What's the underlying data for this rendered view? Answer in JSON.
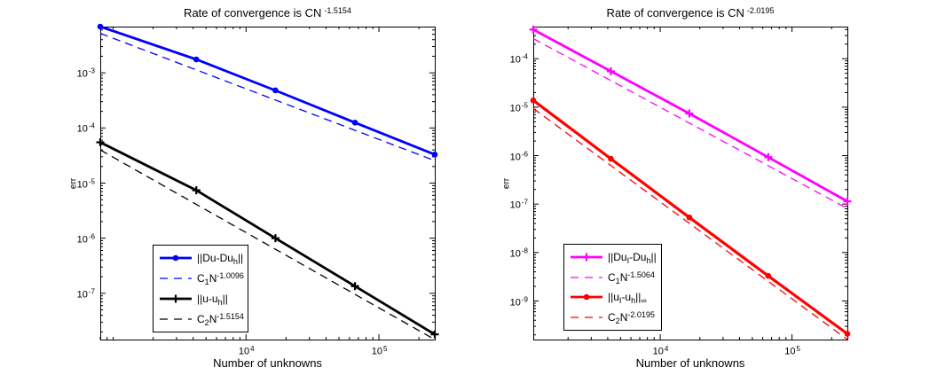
{
  "figure": {
    "background": "#ffffff",
    "axis_color": "#000000"
  },
  "chart_data": [
    {
      "id": "left",
      "type": "line",
      "xscale": "log",
      "yscale": "log",
      "title_base": "Rate of convergence is CN",
      "title_exp": "-1.5154",
      "xlabel": "Number of unknowns",
      "ylabel": "err",
      "xlim": [
        800,
        263169
      ],
      "ylim": [
        1.45e-08,
        0.0069
      ],
      "xtick_exponents": [
        4,
        5
      ],
      "ytick_exponents": [
        -3,
        -4,
        -5,
        -6,
        -7
      ],
      "grid": false,
      "legend_position": "south-west-inside",
      "series": [
        {
          "name": "Du-error",
          "legend_segments": [
            [
              "||Du-Du",
              "n"
            ],
            [
              "h",
              "sub"
            ],
            [
              "||",
              "n"
            ]
          ],
          "color": "#0000ff",
          "style": "solid",
          "marker": "dot",
          "line_width": 2.8,
          "x": [
            800,
            4225,
            16641,
            66049,
            263169
          ],
          "y": [
            0.0069,
            0.00175,
            0.00048,
            0.000125,
            3.3e-05
          ]
        },
        {
          "name": "C1-reference",
          "legend_segments": [
            [
              "C",
              "n"
            ],
            [
              "1",
              "sub"
            ],
            [
              "N",
              "n"
            ],
            [
              "-1.0096",
              "sup"
            ]
          ],
          "color": "#0000ff",
          "style": "dashed",
          "marker": "none",
          "line_width": 1.3,
          "x": [
            800,
            263169
          ],
          "y": [
            0.0052,
            2.55e-05
          ]
        },
        {
          "name": "u-error",
          "legend_segments": [
            [
              "||u-u",
              "n"
            ],
            [
              "h",
              "sub"
            ],
            [
              "||",
              "n"
            ]
          ],
          "color": "#000000",
          "style": "solid",
          "marker": "plus",
          "line_width": 2.8,
          "x": [
            800,
            4225,
            16641,
            66049,
            263169
          ],
          "y": [
            5.5e-05,
            7.4e-06,
            1e-06,
            1.35e-07,
            1.8e-08
          ]
        },
        {
          "name": "C2-reference",
          "legend_segments": [
            [
              "C",
              "n"
            ],
            [
              "2",
              "sub"
            ],
            [
              "N",
              "n"
            ],
            [
              "-1.5154",
              "sup"
            ]
          ],
          "color": "#000000",
          "style": "dashed",
          "marker": "none",
          "line_width": 1.3,
          "x": [
            800,
            263169
          ],
          "y": [
            4e-05,
            1.45e-08
          ]
        }
      ]
    },
    {
      "id": "right",
      "type": "line",
      "xscale": "log",
      "yscale": "log",
      "title_base": "Rate of convergence is CN",
      "title_exp": "-2.0195",
      "xlabel": "Number of unknowns",
      "ylabel": "err",
      "xlim": [
        1089,
        263169
      ],
      "ylim": [
        1.6e-10,
        0.00046
      ],
      "xtick_exponents": [
        4,
        5
      ],
      "ytick_exponents": [
        -4,
        -5,
        -6,
        -7,
        -8,
        -9
      ],
      "grid": false,
      "legend_position": "south-west-inside",
      "series": [
        {
          "name": "DuI-Duh-error",
          "legend_segments": [
            [
              "||Du",
              "n"
            ],
            [
              "I",
              "sub"
            ],
            [
              "-Du",
              "n"
            ],
            [
              "h",
              "sub"
            ],
            [
              "||",
              "n"
            ]
          ],
          "color": "#ff00ff",
          "style": "solid",
          "marker": "plus",
          "line_width": 2.8,
          "x": [
            1089,
            4225,
            16641,
            66049,
            263169
          ],
          "y": [
            0.0004,
            5.5e-05,
            7.4e-06,
            9.3e-07,
            1.14e-07
          ]
        },
        {
          "name": "C1-reference",
          "legend_segments": [
            [
              "C",
              "n"
            ],
            [
              "1",
              "sub"
            ],
            [
              "N",
              "n"
            ],
            [
              "-1.5064",
              "sup"
            ]
          ],
          "color": "#ff00ff",
          "style": "dashed",
          "marker": "none",
          "line_width": 1.3,
          "x": [
            1089,
            263169
          ],
          "y": [
            0.00026,
            8.1e-08
          ]
        },
        {
          "name": "uI-uh-inf-error",
          "legend_segments": [
            [
              "||u",
              "n"
            ],
            [
              "I",
              "sub"
            ],
            [
              "-u",
              "n"
            ],
            [
              "h",
              "sub"
            ],
            [
              "||",
              "n"
            ],
            [
              "∞",
              "sub"
            ]
          ],
          "color": "#ff0000",
          "style": "solid",
          "marker": "dot",
          "line_width": 3.2,
          "x": [
            1089,
            4225,
            16641,
            66049,
            263169
          ],
          "y": [
            1.38e-05,
            8.6e-07,
            5.3e-08,
            3.3e-09,
            2.1e-10
          ]
        },
        {
          "name": "C2-reference",
          "legend_segments": [
            [
              "C",
              "n"
            ],
            [
              "2",
              "sub"
            ],
            [
              "N",
              "n"
            ],
            [
              "-2.0195",
              "sup"
            ]
          ],
          "color": "#ff0000",
          "style": "dashed",
          "marker": "none",
          "line_width": 1.3,
          "x": [
            1089,
            263169
          ],
          "y": [
            9.4e-06,
            1.6e-10
          ]
        }
      ]
    }
  ]
}
